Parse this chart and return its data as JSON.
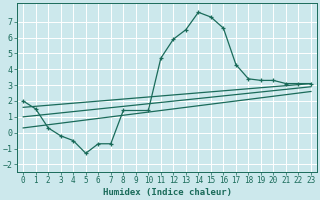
{
  "xlabel": "Humidex (Indice chaleur)",
  "bg_color": "#cce8ec",
  "grid_color": "#b0d4d8",
  "line_color": "#1a6b5a",
  "xlim": [
    -0.5,
    23.5
  ],
  "ylim": [
    -2.5,
    8.2
  ],
  "xticks": [
    0,
    1,
    2,
    3,
    4,
    5,
    6,
    7,
    8,
    9,
    10,
    11,
    12,
    13,
    14,
    15,
    16,
    17,
    18,
    19,
    20,
    21,
    22,
    23
  ],
  "yticks": [
    -2,
    -1,
    0,
    1,
    2,
    3,
    4,
    5,
    6,
    7
  ],
  "curve1_x": [
    0,
    1,
    2,
    3,
    4,
    5,
    6,
    7,
    8,
    10,
    11,
    12,
    13,
    14,
    15,
    16,
    17,
    18,
    19,
    20,
    21,
    22,
    23
  ],
  "curve1_y": [
    2.0,
    1.5,
    0.3,
    -0.2,
    -0.5,
    -1.3,
    -0.7,
    -0.7,
    1.4,
    1.4,
    4.7,
    5.9,
    6.5,
    7.6,
    7.3,
    6.6,
    4.3,
    3.4,
    3.3,
    3.3,
    3.1,
    3.1,
    3.1
  ],
  "line2_x": [
    0,
    23
  ],
  "line2_y": [
    1.6,
    3.1
  ],
  "line3_x": [
    0,
    23
  ],
  "line3_y": [
    1.0,
    2.9
  ],
  "line4_x": [
    0,
    23
  ],
  "line4_y": [
    0.3,
    2.6
  ]
}
